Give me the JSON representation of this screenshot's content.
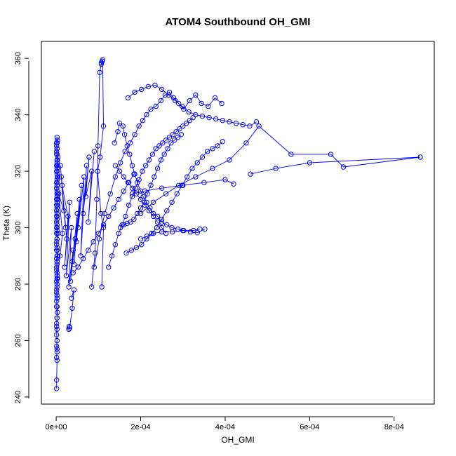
{
  "chart_data": {
    "type": "scatter",
    "title": "ATOM4 Southbound OH_GMI",
    "xlabel": "OH_GMI",
    "ylabel": "Theta (K)",
    "xlim": [
      -3.5e-05,
      0.000895
    ],
    "ylim": [
      237.5,
      366.0
    ],
    "x_ticks": [
      0,
      0.0002,
      0.0004,
      0.0006,
      0.0008
    ],
    "x_tick_labels": [
      "0e+00",
      "2e-04",
      "4e-04",
      "6e-04",
      "8e-04"
    ],
    "y_ticks": [
      240,
      260,
      280,
      300,
      320,
      340,
      360
    ],
    "y_tick_labels": [
      "240",
      "260",
      "280",
      "300",
      "320",
      "340",
      "360"
    ],
    "marker": "open-circle",
    "connected": true,
    "grid": false,
    "color": "#0000ff",
    "series": [
      {
        "x": [
          1e-06,
          1e-06,
          2e-06,
          1e-06,
          2e-06,
          1e-06,
          2e-06,
          1e-06,
          2e-06,
          1e-06,
          2e-06,
          1e-06,
          2e-06,
          1e-06,
          2e-06,
          1e-06,
          2e-06,
          1e-06,
          2e-06,
          1e-06,
          2e-06,
          1e-06,
          2e-06,
          1e-06,
          2e-06,
          1e-06,
          2e-06,
          1e-06,
          2e-06,
          1e-06,
          2e-06,
          1e-06,
          2e-06,
          1e-06,
          2e-06,
          3e-06,
          2e-06,
          1e-06,
          2e-06,
          1e-06,
          2e-06,
          3e-06,
          2e-06,
          1e-06,
          2e-06,
          1e-06,
          2e-06,
          3e-06,
          4e-06,
          2e-06,
          1e-06,
          2e-06,
          1e-06,
          2e-06,
          3e-06,
          2e-06,
          1e-06,
          2e-06,
          1e-06,
          2e-06,
          3e-06,
          2e-06,
          4e-06,
          2e-06,
          1e-06,
          2e-06,
          3e-06,
          2e-06,
          1e-06,
          2e-06,
          1e-06,
          2e-06,
          4e-06,
          2e-06,
          1e-06,
          2e-06,
          3e-06,
          2e-06,
          1e-06,
          2e-06,
          3e-06,
          2e-06,
          1e-06,
          2e-06,
          1e-06,
          2e-06,
          3e-06,
          2e-06,
          1e-06,
          2e-06,
          1e-06,
          2e-06,
          1e-06,
          2e-06
        ],
        "y": [
          243,
          246,
          253,
          254,
          257,
          265,
          268,
          272,
          275,
          277,
          279,
          281,
          283,
          285,
          287,
          289,
          290,
          292,
          293,
          295,
          296,
          298,
          299,
          300,
          301,
          302,
          303,
          304,
          305,
          306,
          307,
          308,
          309,
          310,
          311,
          312,
          313,
          314,
          315,
          316,
          317,
          318,
          319,
          320,
          321,
          322,
          323,
          324,
          325,
          326,
          327,
          328,
          329,
          330,
          331,
          332,
          330,
          328,
          326,
          324,
          322,
          320,
          318,
          316,
          314,
          312,
          310,
          308,
          306,
          304,
          302,
          300,
          298,
          296,
          294,
          292,
          290,
          288,
          286,
          284,
          282,
          280,
          278,
          276,
          274,
          272,
          270,
          268,
          266,
          264,
          262,
          260,
          258,
          256
        ]
      },
      {
        "x": [
          2e-06,
          9e-06,
          1.5e-05,
          6e-06,
          1.8e-05,
          1.2e-05,
          2.2e-05,
          1e-05,
          2.5e-05,
          1.4e-05,
          2.8e-05,
          2e-05,
          3.2e-05,
          2.4e-05,
          3.6e-05,
          3e-05,
          4e-05,
          3.4e-05,
          4.5e-05,
          3.8e-05,
          5e-05,
          4.2e-05,
          5.5e-05,
          4.8e-05,
          6e-05,
          5.2e-05,
          6.6e-05,
          5.8e-05,
          7.2e-05,
          6.4e-05,
          7.8e-05,
          7e-05,
          8.4e-05,
          7.6e-05,
          9e-05
        ],
        "y": [
          282,
          290,
          298,
          312,
          306,
          318,
          300,
          322,
          296,
          315,
          304,
          286,
          309,
          283,
          300,
          279,
          292,
          281,
          296,
          288,
          305,
          287,
          310,
          295,
          315,
          300,
          318,
          290,
          322,
          305,
          325,
          311,
          320,
          302,
          327
        ]
      },
      {
        "x": [
          3e-05,
          3.1e-05,
          3.2e-05,
          3.8e-05,
          4.2e-05,
          3.6e-05
        ],
        "y": [
          264,
          265,
          264.5,
          271.5,
          278,
          275
        ]
      },
      {
        "x": [
          8.4e-05,
          9.2e-05,
          9.6e-05,
          9.9e-05,
          0.000103,
          0.000107,
          0.000109,
          0.000107,
          0.00011,
          0.000112,
          0.000104,
          9.8e-05,
          0.000106,
          0.000112,
          0.000108
        ],
        "y": [
          279,
          291,
          310,
          329,
          355,
          358,
          359,
          358.5,
          359.5,
          336,
          325,
          320,
          305,
          300,
          279
        ]
      },
      {
        "x": [
          9e-05,
          0.000102,
          0.000115,
          0.000128,
          0.00014,
          0.000152,
          0.000163,
          0.000175,
          0.000186,
          0.000196,
          0.000205,
          0.000214,
          0.000224,
          0.000236,
          0.000248,
          0.000258,
          0.000268,
          0.000278,
          0.00029,
          0.000302,
          0.000316,
          0.00033,
          0.000344,
          0.00036,
          0.000376,
          0.000392
        ],
        "y": [
          286,
          296,
          305,
          312,
          318,
          323,
          327,
          330,
          333,
          336,
          338,
          340,
          342,
          343,
          345,
          347,
          348,
          346,
          344,
          342,
          345,
          347,
          344,
          343,
          346,
          344
        ]
      },
      {
        "x": [
          0.000124,
          0.000132,
          0.00014,
          0.000148,
          0.000156,
          0.000164,
          0.000172,
          0.00018,
          0.000188,
          0.000196,
          0.000204,
          0.000212,
          0.00022,
          0.000228,
          0.000236,
          0.000244,
          0.000252,
          0.00026,
          0.000268,
          0.000276,
          0.000284,
          0.000292,
          0.0003,
          0.000308,
          0.000316,
          0.000324
        ],
        "y": [
          286,
          290,
          294,
          298,
          301,
          304,
          308,
          311,
          314,
          317,
          320,
          322,
          324,
          326,
          328,
          329,
          330,
          331,
          332,
          333,
          334,
          335,
          336,
          337,
          338,
          339
        ]
      },
      {
        "x": [
          0.000138,
          0.000146,
          0.00015,
          0.000158,
          0.000162,
          0.000168,
          0.000174,
          0.00018,
          0.000186,
          0.000192,
          0.0002,
          0.000206,
          0.000214,
          0.000222,
          0.00023,
          0.00024,
          0.00025,
          0.000262,
          0.000274,
          0.000288,
          0.000302,
          0.000318,
          0.000334,
          0.000352
        ],
        "y": [
          330,
          334,
          337,
          336,
          333,
          329,
          326,
          322,
          319,
          316,
          313,
          311,
          309,
          307,
          305,
          304,
          302,
          301,
          300,
          299.5,
          299,
          298.5,
          298.2,
          299.5
        ]
      },
      {
        "x": [
          0.000152,
          0.00016,
          0.000168,
          0.000176,
          0.000184,
          0.000192,
          0.0002,
          0.000208,
          0.000216,
          0.000224,
          0.000232,
          0.00024,
          0.000248,
          0.000256,
          0.000264,
          0.000272,
          0.00028,
          0.000288,
          0.000296
        ],
        "y": [
          300,
          301,
          301.5,
          302,
          303,
          305,
          307,
          309,
          312,
          315,
          318,
          321,
          324,
          326,
          328,
          330,
          331,
          332,
          333
        ]
      },
      {
        "x": [
          0.000166,
          0.000178,
          0.00019,
          0.000202,
          0.000214,
          0.000226,
          0.000238,
          0.00025,
          0.000262,
          0.000274,
          0.000286,
          0.000298,
          0.00031,
          0.000322,
          0.000334,
          0.000346,
          0.000358,
          0.00037,
          0.000382,
          0.000394
        ],
        "y": [
          291,
          292,
          293,
          294,
          296,
          298,
          300,
          303,
          306,
          309,
          312,
          315,
          318,
          321,
          323,
          325,
          327,
          328,
          329,
          330.5
        ]
      },
      {
        "x": [
          0.0002,
          0.00023,
          0.00026,
          0.00029,
          0.00033,
          0.00037,
          0.00041,
          0.00045,
          0.00048,
          0.000556,
          0.00065,
          0.00068,
          0.000862,
          0.0006,
          0.00052,
          0.00046
        ],
        "y": [
          305,
          309,
          312,
          315,
          318,
          321,
          324,
          330,
          336,
          326,
          326,
          321.5,
          325,
          323,
          321,
          319
        ]
      },
      {
        "x": [
          0.00018,
          0.00021,
          0.00025,
          0.0003,
          0.00035,
          0.0004,
          0.00042
        ],
        "y": [
          312,
          313,
          314,
          315,
          316,
          317,
          315.5
        ]
      },
      {
        "x": [
          0.0002,
          0.000215,
          0.00023,
          0.00025,
          0.000275,
          0.0003,
          0.000325,
          0.00034
        ],
        "y": [
          296,
          297,
          298,
          298.5,
          298.5,
          299,
          299,
          299.5
        ]
      },
      {
        "x": [
          0.00017,
          0.000186,
          0.000202,
          0.000218,
          0.000234,
          0.00025,
          0.000266,
          0.000282,
          0.000298,
          0.000314,
          0.00033,
          0.000346,
          0.000362,
          0.000378,
          0.000394,
          0.00041,
          0.000426,
          0.000442,
          0.000458,
          0.000474
        ],
        "y": [
          346,
          348,
          349,
          350,
          350.5,
          349,
          347,
          345,
          343,
          341,
          340,
          339.5,
          339,
          338.5,
          338,
          337.5,
          337,
          336.5,
          336,
          337.5
        ]
      },
      {
        "x": [
          0.00014,
          0.00015,
          0.00016,
          0.00017,
          0.00018,
          0.00019,
          0.0002,
          0.00021,
          0.00022,
          0.00023,
          0.00024,
          0.00025,
          0.00026
        ],
        "y": [
          322,
          320,
          318,
          316,
          314,
          312,
          310,
          308,
          306,
          304,
          302,
          300,
          298
        ]
      },
      {
        "x": [
          4e-05,
          5.2e-05,
          6.4e-05,
          7.6e-05,
          8.8e-05,
          0.0001,
          0.000112,
          0.000124,
          0.000136,
          0.000148,
          0.00016,
          0.000172,
          0.000184
        ],
        "y": [
          284,
          286,
          289,
          292,
          295,
          298,
          301,
          304,
          307,
          310,
          313,
          316,
          319
        ]
      }
    ]
  }
}
